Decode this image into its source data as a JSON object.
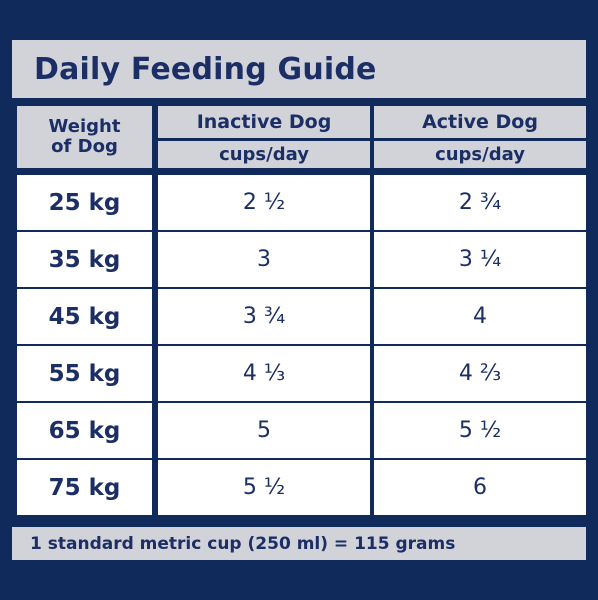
{
  "title": "Daily Feeding Guide",
  "header": {
    "weight_line1": "Weight",
    "weight_line2": "of Dog",
    "inactive": "Inactive Dog",
    "active": "Active Dog",
    "unit_inactive": "cups/day",
    "unit_active": "cups/day"
  },
  "rows": [
    {
      "weight": "25 kg",
      "inactive": "2 ½",
      "active": "2 ¾"
    },
    {
      "weight": "35 kg",
      "inactive": "3",
      "active": "3 ¼"
    },
    {
      "weight": "45 kg",
      "inactive": "3 ¾",
      "active": "4"
    },
    {
      "weight": "55 kg",
      "inactive": "4 ⅓",
      "active": "4 ⅔"
    },
    {
      "weight": "65 kg",
      "inactive": "5",
      "active": "5 ½"
    },
    {
      "weight": "75 kg",
      "inactive": "5 ½",
      "active": "6"
    }
  ],
  "footer": "1 standard metric cup (250 ml) = 115 grams",
  "colors": {
    "background": "#102a5c",
    "header_bg": "#d2d3d8",
    "cell_bg": "#ffffff",
    "text": "#1b2e66"
  }
}
